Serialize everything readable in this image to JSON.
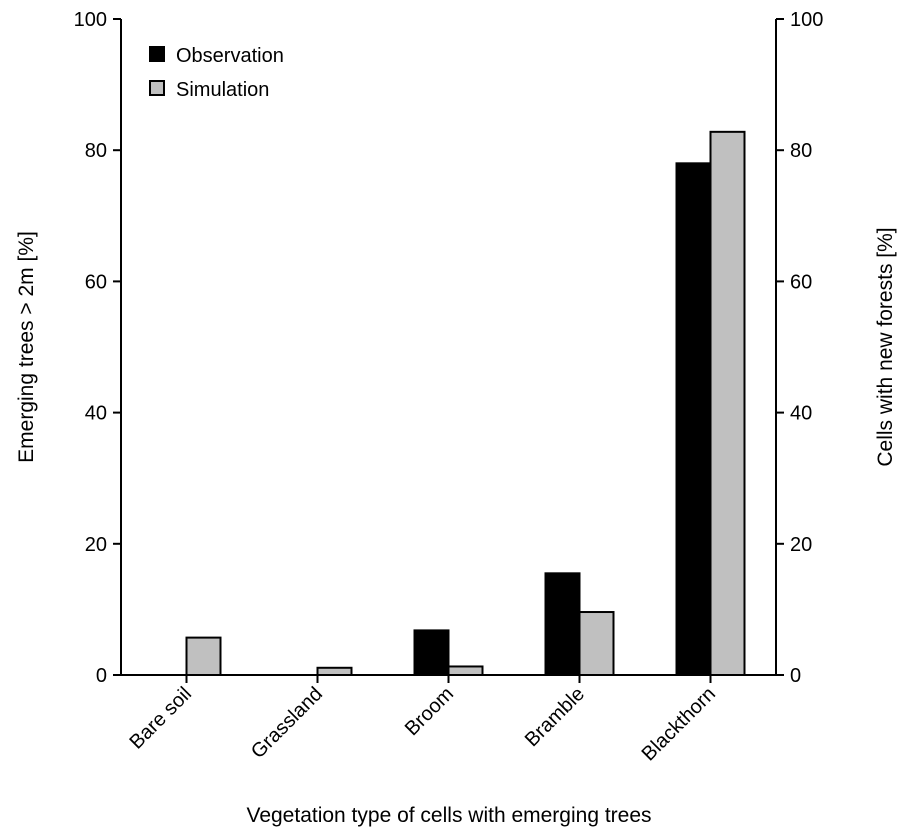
{
  "chart_data": {
    "type": "bar",
    "categories": [
      "Bare soil",
      "Grassland",
      "Broom",
      "Bramble",
      "Blackthorn"
    ],
    "series": [
      {
        "name": "Observation",
        "color": "#000000",
        "values": [
          0,
          0,
          6.8,
          15.5,
          78
        ]
      },
      {
        "name": "Simulation",
        "color": "#c0c0c0",
        "values": [
          5.7,
          1.1,
          1.3,
          9.6,
          82.8
        ]
      }
    ],
    "xlabel": "Vegetation type of cells with emerging trees",
    "ylabel": "Emerging trees > 2m [%]",
    "y2label": "Cells with new forests [%]",
    "ylim": [
      0,
      100
    ],
    "y2lim": [
      0,
      100
    ],
    "yticks": [
      "0",
      "20",
      "40",
      "60",
      "80",
      "100"
    ],
    "y2ticks": [
      "0",
      "20",
      "40",
      "60",
      "80",
      "100"
    ],
    "legend_position": "top-left",
    "grid": false
  }
}
